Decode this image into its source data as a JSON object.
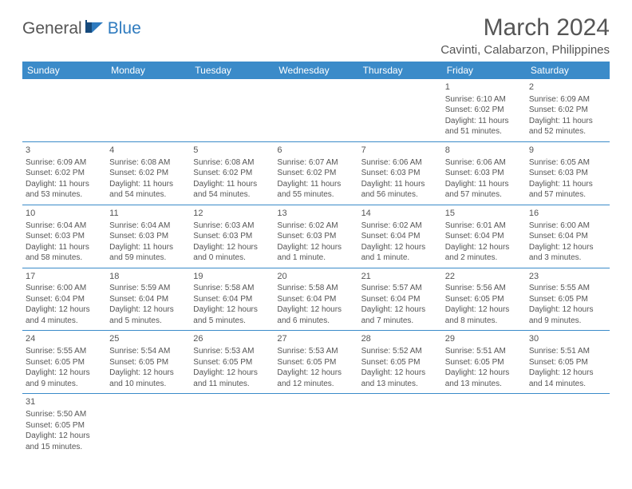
{
  "logo": {
    "general": "General",
    "blue": "Blue"
  },
  "title": "March 2024",
  "location": "Cavinti, Calabarzon, Philippines",
  "colors": {
    "header_bg": "#3b8bc9",
    "header_text": "#ffffff",
    "body_text": "#555555",
    "rule": "#3b8bc9",
    "logo_blue": "#2f7bbf"
  },
  "daysOfWeek": [
    "Sunday",
    "Monday",
    "Tuesday",
    "Wednesday",
    "Thursday",
    "Friday",
    "Saturday"
  ],
  "weeks": [
    [
      null,
      null,
      null,
      null,
      null,
      {
        "n": "1",
        "sr": "Sunrise: 6:10 AM",
        "ss": "Sunset: 6:02 PM",
        "d1": "Daylight: 11 hours",
        "d2": "and 51 minutes."
      },
      {
        "n": "2",
        "sr": "Sunrise: 6:09 AM",
        "ss": "Sunset: 6:02 PM",
        "d1": "Daylight: 11 hours",
        "d2": "and 52 minutes."
      }
    ],
    [
      {
        "n": "3",
        "sr": "Sunrise: 6:09 AM",
        "ss": "Sunset: 6:02 PM",
        "d1": "Daylight: 11 hours",
        "d2": "and 53 minutes."
      },
      {
        "n": "4",
        "sr": "Sunrise: 6:08 AM",
        "ss": "Sunset: 6:02 PM",
        "d1": "Daylight: 11 hours",
        "d2": "and 54 minutes."
      },
      {
        "n": "5",
        "sr": "Sunrise: 6:08 AM",
        "ss": "Sunset: 6:02 PM",
        "d1": "Daylight: 11 hours",
        "d2": "and 54 minutes."
      },
      {
        "n": "6",
        "sr": "Sunrise: 6:07 AM",
        "ss": "Sunset: 6:02 PM",
        "d1": "Daylight: 11 hours",
        "d2": "and 55 minutes."
      },
      {
        "n": "7",
        "sr": "Sunrise: 6:06 AM",
        "ss": "Sunset: 6:03 PM",
        "d1": "Daylight: 11 hours",
        "d2": "and 56 minutes."
      },
      {
        "n": "8",
        "sr": "Sunrise: 6:06 AM",
        "ss": "Sunset: 6:03 PM",
        "d1": "Daylight: 11 hours",
        "d2": "and 57 minutes."
      },
      {
        "n": "9",
        "sr": "Sunrise: 6:05 AM",
        "ss": "Sunset: 6:03 PM",
        "d1": "Daylight: 11 hours",
        "d2": "and 57 minutes."
      }
    ],
    [
      {
        "n": "10",
        "sr": "Sunrise: 6:04 AM",
        "ss": "Sunset: 6:03 PM",
        "d1": "Daylight: 11 hours",
        "d2": "and 58 minutes."
      },
      {
        "n": "11",
        "sr": "Sunrise: 6:04 AM",
        "ss": "Sunset: 6:03 PM",
        "d1": "Daylight: 11 hours",
        "d2": "and 59 minutes."
      },
      {
        "n": "12",
        "sr": "Sunrise: 6:03 AM",
        "ss": "Sunset: 6:03 PM",
        "d1": "Daylight: 12 hours",
        "d2": "and 0 minutes."
      },
      {
        "n": "13",
        "sr": "Sunrise: 6:02 AM",
        "ss": "Sunset: 6:03 PM",
        "d1": "Daylight: 12 hours",
        "d2": "and 1 minute."
      },
      {
        "n": "14",
        "sr": "Sunrise: 6:02 AM",
        "ss": "Sunset: 6:04 PM",
        "d1": "Daylight: 12 hours",
        "d2": "and 1 minute."
      },
      {
        "n": "15",
        "sr": "Sunrise: 6:01 AM",
        "ss": "Sunset: 6:04 PM",
        "d1": "Daylight: 12 hours",
        "d2": "and 2 minutes."
      },
      {
        "n": "16",
        "sr": "Sunrise: 6:00 AM",
        "ss": "Sunset: 6:04 PM",
        "d1": "Daylight: 12 hours",
        "d2": "and 3 minutes."
      }
    ],
    [
      {
        "n": "17",
        "sr": "Sunrise: 6:00 AM",
        "ss": "Sunset: 6:04 PM",
        "d1": "Daylight: 12 hours",
        "d2": "and 4 minutes."
      },
      {
        "n": "18",
        "sr": "Sunrise: 5:59 AM",
        "ss": "Sunset: 6:04 PM",
        "d1": "Daylight: 12 hours",
        "d2": "and 5 minutes."
      },
      {
        "n": "19",
        "sr": "Sunrise: 5:58 AM",
        "ss": "Sunset: 6:04 PM",
        "d1": "Daylight: 12 hours",
        "d2": "and 5 minutes."
      },
      {
        "n": "20",
        "sr": "Sunrise: 5:58 AM",
        "ss": "Sunset: 6:04 PM",
        "d1": "Daylight: 12 hours",
        "d2": "and 6 minutes."
      },
      {
        "n": "21",
        "sr": "Sunrise: 5:57 AM",
        "ss": "Sunset: 6:04 PM",
        "d1": "Daylight: 12 hours",
        "d2": "and 7 minutes."
      },
      {
        "n": "22",
        "sr": "Sunrise: 5:56 AM",
        "ss": "Sunset: 6:05 PM",
        "d1": "Daylight: 12 hours",
        "d2": "and 8 minutes."
      },
      {
        "n": "23",
        "sr": "Sunrise: 5:55 AM",
        "ss": "Sunset: 6:05 PM",
        "d1": "Daylight: 12 hours",
        "d2": "and 9 minutes."
      }
    ],
    [
      {
        "n": "24",
        "sr": "Sunrise: 5:55 AM",
        "ss": "Sunset: 6:05 PM",
        "d1": "Daylight: 12 hours",
        "d2": "and 9 minutes."
      },
      {
        "n": "25",
        "sr": "Sunrise: 5:54 AM",
        "ss": "Sunset: 6:05 PM",
        "d1": "Daylight: 12 hours",
        "d2": "and 10 minutes."
      },
      {
        "n": "26",
        "sr": "Sunrise: 5:53 AM",
        "ss": "Sunset: 6:05 PM",
        "d1": "Daylight: 12 hours",
        "d2": "and 11 minutes."
      },
      {
        "n": "27",
        "sr": "Sunrise: 5:53 AM",
        "ss": "Sunset: 6:05 PM",
        "d1": "Daylight: 12 hours",
        "d2": "and 12 minutes."
      },
      {
        "n": "28",
        "sr": "Sunrise: 5:52 AM",
        "ss": "Sunset: 6:05 PM",
        "d1": "Daylight: 12 hours",
        "d2": "and 13 minutes."
      },
      {
        "n": "29",
        "sr": "Sunrise: 5:51 AM",
        "ss": "Sunset: 6:05 PM",
        "d1": "Daylight: 12 hours",
        "d2": "and 13 minutes."
      },
      {
        "n": "30",
        "sr": "Sunrise: 5:51 AM",
        "ss": "Sunset: 6:05 PM",
        "d1": "Daylight: 12 hours",
        "d2": "and 14 minutes."
      }
    ],
    [
      {
        "n": "31",
        "sr": "Sunrise: 5:50 AM",
        "ss": "Sunset: 6:05 PM",
        "d1": "Daylight: 12 hours",
        "d2": "and 15 minutes."
      },
      null,
      null,
      null,
      null,
      null,
      null
    ]
  ]
}
